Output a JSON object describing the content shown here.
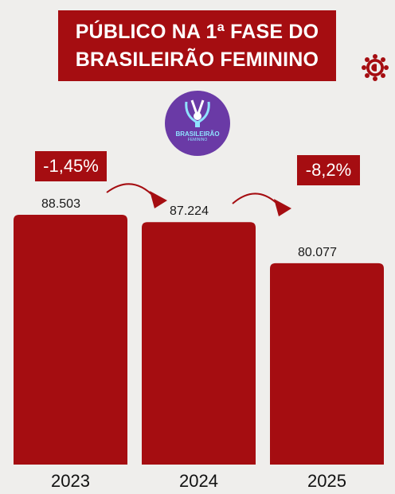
{
  "title": {
    "line1": "PÚBLICO NA 1ª FASE DO",
    "line2": "BRASILEIRÃO FEMININO"
  },
  "league_logo": {
    "name": "BRASILEIRÃO",
    "sub": "FEMININO",
    "icon": "trophy-icon"
  },
  "brand_logo": {
    "icon": "brand-sun-icon"
  },
  "changes": [
    {
      "label": "-1,45%"
    },
    {
      "label": "-8,2%"
    }
  ],
  "colors": {
    "bar": "#a50d11",
    "background": "#efeeec",
    "title_bg": "#a50d11",
    "league_bg": "#6a3aa6"
  },
  "chart_data": {
    "type": "bar",
    "categories": [
      "2023",
      "2024",
      "2025"
    ],
    "values": [
      88503,
      87224,
      80077
    ],
    "value_labels": [
      "88.503",
      "87.224",
      "80.077"
    ],
    "title": "PÚBLICO NA 1ª FASE DO BRASILEIRÃO FEMININO",
    "xlabel": "",
    "ylabel": ""
  }
}
